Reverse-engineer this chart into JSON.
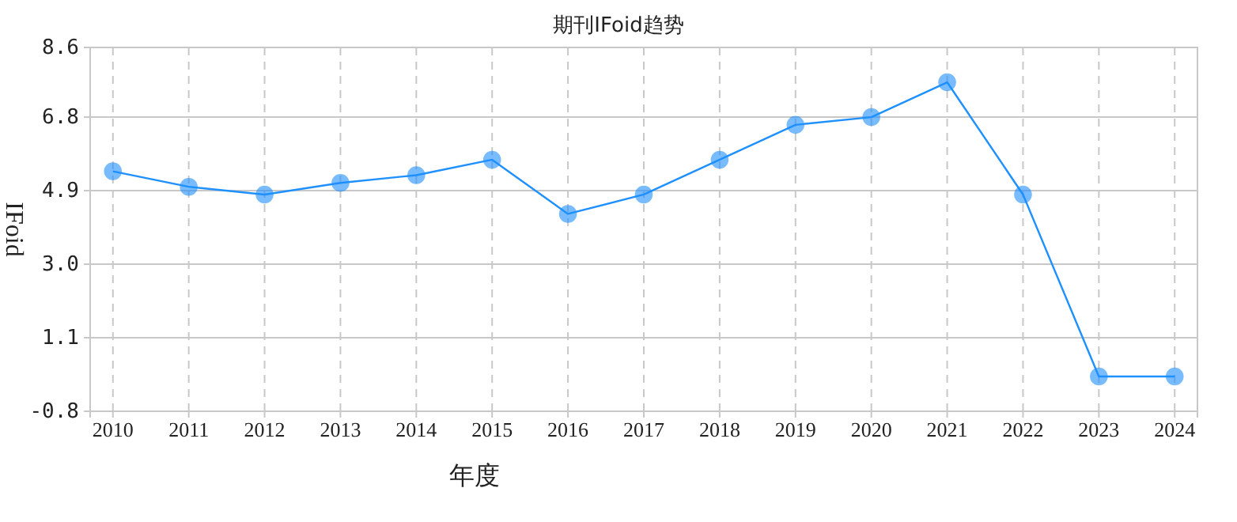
{
  "chart_data": {
    "type": "line",
    "title": "期刊IFoid趋势",
    "xlabel": "年度",
    "ylabel": "IFoid",
    "categories": [
      "2010",
      "2011",
      "2012",
      "2013",
      "2014",
      "2015",
      "2016",
      "2017",
      "2018",
      "2019",
      "2020",
      "2021",
      "2022",
      "2023",
      "2024"
    ],
    "series": [
      {
        "color": "#1e90ff",
        "values": [
          5.4,
          5.0,
          4.8,
          5.1,
          5.3,
          5.7,
          4.3,
          4.8,
          5.7,
          6.6,
          6.8,
          7.7,
          4.8,
          0.1,
          0.1
        ]
      }
    ],
    "ylim": [
      -0.8,
      8.6
    ],
    "yticks": [
      -0.8,
      1.1,
      {
        "value": 3,
        "label": "3.0"
      },
      4.9,
      6.8,
      8.6
    ],
    "grid": true,
    "marker": "circle",
    "line_style": "solid"
  }
}
